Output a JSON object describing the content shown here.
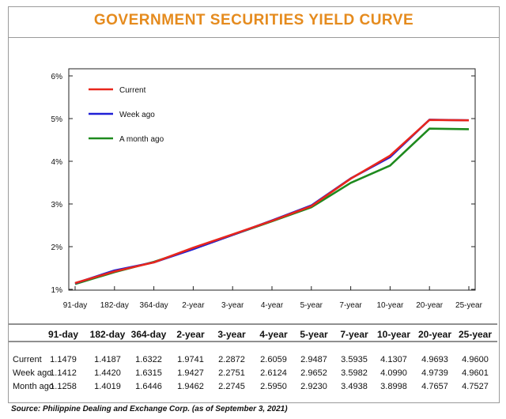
{
  "title": "GOVERNMENT SECURITIES YIELD CURVE",
  "source": "Source: Philippine Dealing and Exchange Corp. (as of September 3, 2021)",
  "chart_data": {
    "type": "line",
    "title": "GOVERNMENT SECURITIES YIELD CURVE",
    "categories": [
      "91-day",
      "182-day",
      "364-day",
      "2-year",
      "3-year",
      "4-year",
      "5-year",
      "7-year",
      "10-year",
      "20-year",
      "25-year"
    ],
    "ylim": [
      1,
      6
    ],
    "yticks": [
      "1%",
      "2%",
      "3%",
      "4%",
      "5%",
      "6%"
    ],
    "xlabel": "",
    "ylabel": "",
    "grid": false,
    "legend_position": "top-left",
    "series": [
      {
        "name": "Current",
        "color": "#e8261c",
        "values": [
          1.1479,
          1.4187,
          1.6322,
          1.9741,
          2.2872,
          2.6059,
          2.9487,
          3.5935,
          4.1307,
          4.9693,
          4.96
        ]
      },
      {
        "name": "Week ago",
        "color": "#1f1fd6",
        "values": [
          1.1412,
          1.442,
          1.6315,
          1.9427,
          2.2751,
          2.6124,
          2.9652,
          3.5982,
          4.099,
          4.9739,
          4.9601
        ]
      },
      {
        "name": "A month ago",
        "color": "#1e8a1e",
        "values": [
          1.1258,
          1.4019,
          1.6446,
          1.9462,
          2.2745,
          2.595,
          2.923,
          3.4938,
          3.8998,
          4.7657,
          4.7527
        ]
      }
    ]
  },
  "table": {
    "headers": [
      "91-day",
      "182-day",
      "364-day",
      "2-year",
      "3-year",
      "4-year",
      "5-year",
      "7-year",
      "10-year",
      "20-year",
      "25-year"
    ],
    "rows": [
      {
        "label": "Current",
        "values": [
          "1.1479",
          "1.4187",
          "1.6322",
          "1.9741",
          "2.2872",
          "2.6059",
          "2.9487",
          "3.5935",
          "4.1307",
          "4.9693",
          "4.9600"
        ]
      },
      {
        "label": "Week ago",
        "values": [
          "1.1412",
          "1.4420",
          "1.6315",
          "1.9427",
          "2.2751",
          "2.6124",
          "2.9652",
          "3.5982",
          "4.0990",
          "4.9739",
          "4.9601"
        ]
      },
      {
        "label": "Month ago",
        "values": [
          "1.1258",
          "1.4019",
          "1.6446",
          "1.9462",
          "2.2745",
          "2.5950",
          "2.9230",
          "3.4938",
          "3.8998",
          "4.7657",
          "4.7527"
        ]
      }
    ]
  }
}
